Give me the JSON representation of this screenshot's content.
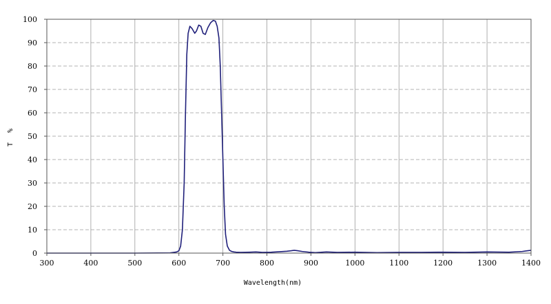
{
  "chart_data": {
    "type": "line",
    "title": "",
    "xlabel": "Wavelength(nm)",
    "ylabel": "T %",
    "xlim": [
      300,
      1400
    ],
    "ylim": [
      0,
      100
    ],
    "x_ticks": [
      300,
      400,
      500,
      600,
      700,
      800,
      900,
      1000,
      1100,
      1200,
      1300,
      1400
    ],
    "y_ticks": [
      0,
      10,
      20,
      30,
      40,
      50,
      60,
      70,
      80,
      90,
      100
    ],
    "grid": true,
    "legend": false,
    "colors": {
      "line": "#1f1f7a",
      "grid": "#9a9a9a",
      "frame": "#555555"
    },
    "series": [
      {
        "x": [
          300,
          400,
          500,
          580,
          595,
          600,
          604,
          608,
          612,
          615,
          618,
          621,
          625,
          630,
          636,
          640,
          645,
          650,
          655,
          660,
          666,
          672,
          678,
          683,
          687,
          691,
          694,
          697,
          700,
          703,
          706,
          710,
          715,
          720,
          725,
          730,
          740,
          760,
          775,
          790,
          810,
          830,
          845,
          855,
          862,
          870,
          880,
          895,
          910,
          935,
          960,
          1000,
          1050,
          1100,
          1150,
          1200,
          1250,
          1300,
          1350,
          1380,
          1400
        ],
        "y": [
          0,
          0,
          0,
          0.1,
          0.5,
          1,
          3,
          10,
          30,
          60,
          85,
          94,
          97,
          96,
          94,
          95,
          97.5,
          97,
          94,
          93.5,
          96.5,
          98.5,
          99.5,
          99.2,
          97,
          92,
          80,
          60,
          40,
          20,
          8,
          3,
          1.2,
          0.7,
          0.5,
          0.4,
          0.3,
          0.4,
          0.5,
          0.3,
          0.4,
          0.6,
          0.8,
          1,
          1.2,
          1,
          0.7,
          0.4,
          0.2,
          0.5,
          0.3,
          0.4,
          0.2,
          0.3,
          0.3,
          0.4,
          0.3,
          0.5,
          0.4,
          0.7,
          1.2
        ]
      }
    ]
  }
}
